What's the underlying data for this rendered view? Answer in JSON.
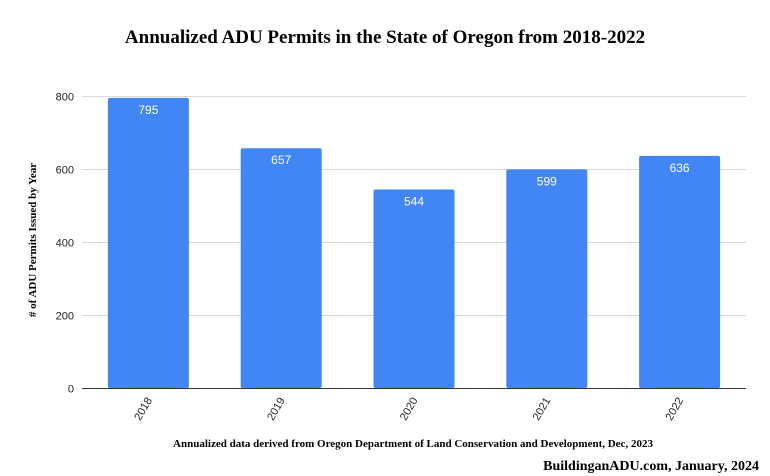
{
  "colors": {
    "bar": "#4285f4",
    "grid": "#d9d9d9",
    "label": "#ffffff"
  },
  "chart_data": {
    "type": "bar",
    "title": "Annualized ADU Permits in the State of Oregon from 2018-2022",
    "xlabel": "Annualized data derived from Oregon Department of Land Conservation and Development, Dec, 2023",
    "ylabel": "# of ADU Permits Issued by Year",
    "categories": [
      "2018",
      "2019",
      "2020",
      "2021",
      "2022"
    ],
    "values": [
      795,
      657,
      544,
      599,
      636
    ],
    "data_labels": [
      "795",
      "657",
      "544",
      "599",
      "636"
    ],
    "ylim": [
      0,
      800
    ],
    "yticks": [
      0,
      200,
      400,
      600,
      800
    ],
    "grid": true,
    "legend": "none"
  },
  "credit": "BuildinganADU.com, January, 2024"
}
